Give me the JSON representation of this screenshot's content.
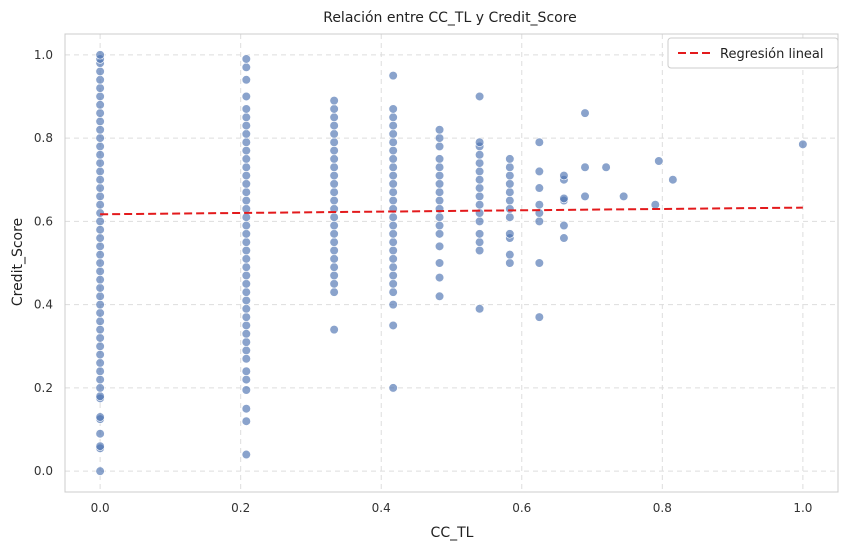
{
  "chart_data": {
    "type": "scatter",
    "title": "Relación entre CC_TL y Credit_Score",
    "xlabel": "CC_TL",
    "ylabel": "Credit_Score",
    "xlim": [
      -0.05,
      1.05
    ],
    "ylim": [
      -0.05,
      1.05
    ],
    "xticks": [
      0.0,
      0.2,
      0.4,
      0.6,
      0.8,
      1.0
    ],
    "yticks": [
      0.0,
      0.2,
      0.4,
      0.6,
      0.8,
      1.0
    ],
    "xtick_labels": [
      "0.0",
      "0.2",
      "0.4",
      "0.6",
      "0.8",
      "1.0"
    ],
    "ytick_labels": [
      "0.0",
      "0.2",
      "0.4",
      "0.6",
      "0.8",
      "1.0"
    ],
    "grid": true,
    "grid_style": "dashed",
    "legend_position": "top-right",
    "point_color": "#4c72b0",
    "line_color": "#e31a1c",
    "series": [
      {
        "type": "scatter",
        "points": [
          [
            0.0,
            0.0
          ],
          [
            0.0,
            0.055
          ],
          [
            0.0,
            0.06
          ],
          [
            0.0,
            0.09
          ],
          [
            0.0,
            0.125
          ],
          [
            0.0,
            0.13
          ],
          [
            0.0,
            0.175
          ],
          [
            0.0,
            0.18
          ],
          [
            0.0,
            0.2
          ],
          [
            0.0,
            0.22
          ],
          [
            0.0,
            0.24
          ],
          [
            0.0,
            0.26
          ],
          [
            0.0,
            0.28
          ],
          [
            0.0,
            0.3
          ],
          [
            0.0,
            0.32
          ],
          [
            0.0,
            0.34
          ],
          [
            0.0,
            0.36
          ],
          [
            0.0,
            0.38
          ],
          [
            0.0,
            0.4
          ],
          [
            0.0,
            0.42
          ],
          [
            0.0,
            0.44
          ],
          [
            0.0,
            0.46
          ],
          [
            0.0,
            0.48
          ],
          [
            0.0,
            0.5
          ],
          [
            0.0,
            0.52
          ],
          [
            0.0,
            0.54
          ],
          [
            0.0,
            0.56
          ],
          [
            0.0,
            0.58
          ],
          [
            0.0,
            0.6
          ],
          [
            0.0,
            0.62
          ],
          [
            0.0,
            0.64
          ],
          [
            0.0,
            0.66
          ],
          [
            0.0,
            0.68
          ],
          [
            0.0,
            0.7
          ],
          [
            0.0,
            0.72
          ],
          [
            0.0,
            0.74
          ],
          [
            0.0,
            0.76
          ],
          [
            0.0,
            0.78
          ],
          [
            0.0,
            0.8
          ],
          [
            0.0,
            0.82
          ],
          [
            0.0,
            0.84
          ],
          [
            0.0,
            0.86
          ],
          [
            0.0,
            0.88
          ],
          [
            0.0,
            0.9
          ],
          [
            0.0,
            0.92
          ],
          [
            0.0,
            0.94
          ],
          [
            0.0,
            0.96
          ],
          [
            0.0,
            0.98
          ],
          [
            0.0,
            0.99
          ],
          [
            0.0,
            1.0
          ],
          [
            0.208,
            0.04
          ],
          [
            0.208,
            0.12
          ],
          [
            0.208,
            0.15
          ],
          [
            0.208,
            0.195
          ],
          [
            0.208,
            0.22
          ],
          [
            0.208,
            0.24
          ],
          [
            0.208,
            0.27
          ],
          [
            0.208,
            0.29
          ],
          [
            0.208,
            0.31
          ],
          [
            0.208,
            0.33
          ],
          [
            0.208,
            0.35
          ],
          [
            0.208,
            0.37
          ],
          [
            0.208,
            0.39
          ],
          [
            0.208,
            0.41
          ],
          [
            0.208,
            0.43
          ],
          [
            0.208,
            0.45
          ],
          [
            0.208,
            0.47
          ],
          [
            0.208,
            0.49
          ],
          [
            0.208,
            0.51
          ],
          [
            0.208,
            0.53
          ],
          [
            0.208,
            0.55
          ],
          [
            0.208,
            0.57
          ],
          [
            0.208,
            0.59
          ],
          [
            0.208,
            0.61
          ],
          [
            0.208,
            0.63
          ],
          [
            0.208,
            0.65
          ],
          [
            0.208,
            0.67
          ],
          [
            0.208,
            0.69
          ],
          [
            0.208,
            0.71
          ],
          [
            0.208,
            0.73
          ],
          [
            0.208,
            0.75
          ],
          [
            0.208,
            0.77
          ],
          [
            0.208,
            0.79
          ],
          [
            0.208,
            0.81
          ],
          [
            0.208,
            0.83
          ],
          [
            0.208,
            0.85
          ],
          [
            0.208,
            0.87
          ],
          [
            0.208,
            0.9
          ],
          [
            0.208,
            0.94
          ],
          [
            0.208,
            0.97
          ],
          [
            0.208,
            0.99
          ],
          [
            0.333,
            0.34
          ],
          [
            0.333,
            0.43
          ],
          [
            0.333,
            0.45
          ],
          [
            0.333,
            0.47
          ],
          [
            0.333,
            0.49
          ],
          [
            0.333,
            0.51
          ],
          [
            0.333,
            0.53
          ],
          [
            0.333,
            0.55
          ],
          [
            0.333,
            0.57
          ],
          [
            0.333,
            0.59
          ],
          [
            0.333,
            0.61
          ],
          [
            0.333,
            0.63
          ],
          [
            0.333,
            0.65
          ],
          [
            0.333,
            0.67
          ],
          [
            0.333,
            0.69
          ],
          [
            0.333,
            0.71
          ],
          [
            0.333,
            0.73
          ],
          [
            0.333,
            0.75
          ],
          [
            0.333,
            0.77
          ],
          [
            0.333,
            0.79
          ],
          [
            0.333,
            0.81
          ],
          [
            0.333,
            0.83
          ],
          [
            0.333,
            0.85
          ],
          [
            0.333,
            0.87
          ],
          [
            0.333,
            0.89
          ],
          [
            0.417,
            0.2
          ],
          [
            0.417,
            0.35
          ],
          [
            0.417,
            0.4
          ],
          [
            0.417,
            0.43
          ],
          [
            0.417,
            0.45
          ],
          [
            0.417,
            0.47
          ],
          [
            0.417,
            0.49
          ],
          [
            0.417,
            0.51
          ],
          [
            0.417,
            0.53
          ],
          [
            0.417,
            0.55
          ],
          [
            0.417,
            0.57
          ],
          [
            0.417,
            0.59
          ],
          [
            0.417,
            0.61
          ],
          [
            0.417,
            0.63
          ],
          [
            0.417,
            0.65
          ],
          [
            0.417,
            0.67
          ],
          [
            0.417,
            0.69
          ],
          [
            0.417,
            0.71
          ],
          [
            0.417,
            0.73
          ],
          [
            0.417,
            0.75
          ],
          [
            0.417,
            0.77
          ],
          [
            0.417,
            0.79
          ],
          [
            0.417,
            0.81
          ],
          [
            0.417,
            0.83
          ],
          [
            0.417,
            0.85
          ],
          [
            0.417,
            0.87
          ],
          [
            0.417,
            0.95
          ],
          [
            0.483,
            0.42
          ],
          [
            0.483,
            0.465
          ],
          [
            0.483,
            0.5
          ],
          [
            0.483,
            0.54
          ],
          [
            0.483,
            0.57
          ],
          [
            0.483,
            0.59
          ],
          [
            0.483,
            0.61
          ],
          [
            0.483,
            0.63
          ],
          [
            0.483,
            0.65
          ],
          [
            0.483,
            0.67
          ],
          [
            0.483,
            0.69
          ],
          [
            0.483,
            0.71
          ],
          [
            0.483,
            0.73
          ],
          [
            0.483,
            0.75
          ],
          [
            0.483,
            0.78
          ],
          [
            0.483,
            0.8
          ],
          [
            0.483,
            0.82
          ],
          [
            0.54,
            0.39
          ],
          [
            0.54,
            0.53
          ],
          [
            0.54,
            0.55
          ],
          [
            0.54,
            0.57
          ],
          [
            0.54,
            0.6
          ],
          [
            0.54,
            0.62
          ],
          [
            0.54,
            0.64
          ],
          [
            0.54,
            0.66
          ],
          [
            0.54,
            0.68
          ],
          [
            0.54,
            0.7
          ],
          [
            0.54,
            0.72
          ],
          [
            0.54,
            0.74
          ],
          [
            0.54,
            0.76
          ],
          [
            0.54,
            0.78
          ],
          [
            0.54,
            0.79
          ],
          [
            0.54,
            0.9
          ],
          [
            0.583,
            0.5
          ],
          [
            0.583,
            0.52
          ],
          [
            0.583,
            0.56
          ],
          [
            0.583,
            0.57
          ],
          [
            0.583,
            0.61
          ],
          [
            0.583,
            0.63
          ],
          [
            0.583,
            0.65
          ],
          [
            0.583,
            0.67
          ],
          [
            0.583,
            0.69
          ],
          [
            0.583,
            0.71
          ],
          [
            0.583,
            0.73
          ],
          [
            0.583,
            0.75
          ],
          [
            0.625,
            0.37
          ],
          [
            0.625,
            0.5
          ],
          [
            0.625,
            0.6
          ],
          [
            0.625,
            0.62
          ],
          [
            0.625,
            0.64
          ],
          [
            0.625,
            0.68
          ],
          [
            0.625,
            0.72
          ],
          [
            0.625,
            0.79
          ],
          [
            0.66,
            0.56
          ],
          [
            0.66,
            0.59
          ],
          [
            0.66,
            0.65
          ],
          [
            0.66,
            0.655
          ],
          [
            0.66,
            0.7
          ],
          [
            0.66,
            0.71
          ],
          [
            0.69,
            0.66
          ],
          [
            0.69,
            0.73
          ],
          [
            0.69,
            0.86
          ],
          [
            0.72,
            0.73
          ],
          [
            0.745,
            0.66
          ],
          [
            0.79,
            0.64
          ],
          [
            0.795,
            0.745
          ],
          [
            0.815,
            0.7
          ],
          [
            1.0,
            0.785
          ]
        ]
      },
      {
        "type": "line",
        "name": "Regresión lineal",
        "x": [
          0.0,
          1.0
        ],
        "y": [
          0.617,
          0.633
        ]
      }
    ]
  }
}
